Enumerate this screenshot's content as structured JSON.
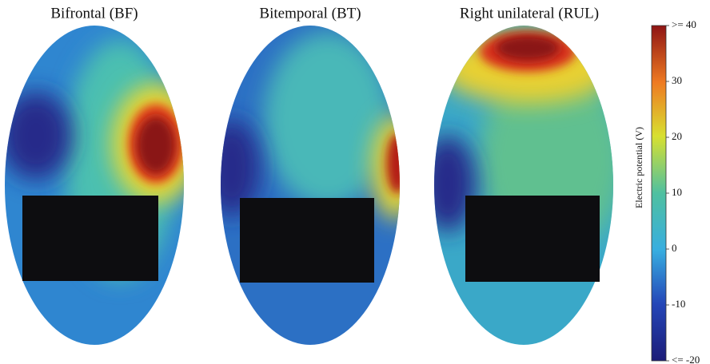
{
  "panels": [
    {
      "title": "Bifrontal (BF)"
    },
    {
      "title": "Bitemporal (BT)"
    },
    {
      "title": "Right unilateral (RUL)"
    }
  ],
  "colorbar": {
    "label": "Electric potential (V)",
    "range": [
      -20,
      40
    ],
    "ticks": [
      {
        "value": 40,
        "label": ">= 40"
      },
      30,
      20,
      10,
      0,
      -10,
      {
        "value": -20,
        "label": "<= -20"
      }
    ]
  }
}
